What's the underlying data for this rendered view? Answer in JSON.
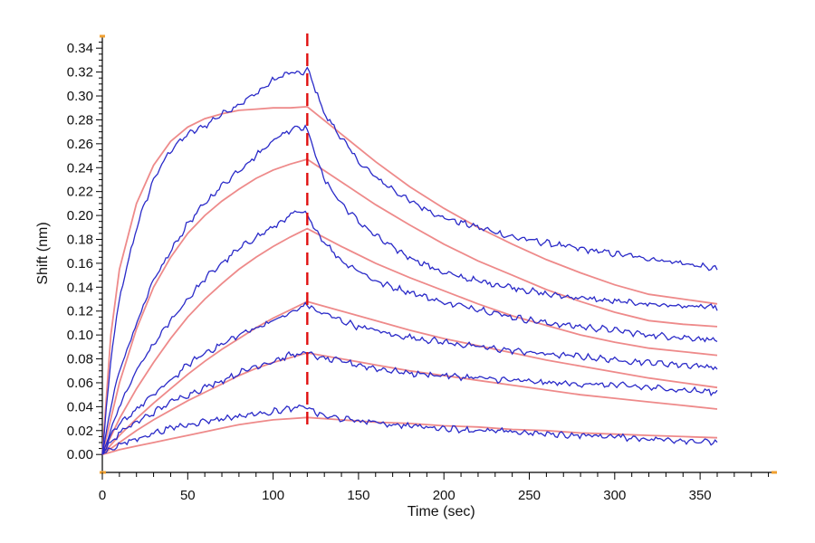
{
  "chart_data": {
    "type": "line",
    "title": "",
    "xlabel": "Time (sec)",
    "ylabel": "Shift (nm)",
    "xlim": [
      0,
      395
    ],
    "ylim": [
      -0.015,
      0.35
    ],
    "x_ticks": [
      0,
      50,
      100,
      150,
      200,
      250,
      300,
      350
    ],
    "x_tick_labels": [
      "0",
      "50",
      "100",
      "150",
      "200",
      "250",
      "300",
      "350"
    ],
    "y_ticks": [
      0.0,
      0.02,
      0.04,
      0.06,
      0.08,
      0.1,
      0.12,
      0.14,
      0.16,
      0.18,
      0.2,
      0.22,
      0.24,
      0.26,
      0.28,
      0.3,
      0.32,
      0.34
    ],
    "y_tick_labels": [
      "0.00",
      "0.02",
      "0.04",
      "0.06",
      "0.08",
      "0.10",
      "0.12",
      "0.14",
      "0.16",
      "0.18",
      "0.20",
      "0.22",
      "0.24",
      "0.26",
      "0.28",
      "0.30",
      "0.32",
      "0.34"
    ],
    "grid": false,
    "legend": "none",
    "association_end_x": 120,
    "x_end": 360,
    "colors": {
      "measured": "#2a2ac8",
      "fit": "#ee8a8a",
      "marker": "#e01010",
      "axis_marker": "#f0a030",
      "axis": "#000000"
    },
    "series": [
      {
        "kind": "measured",
        "x": [
          0,
          5,
          10,
          20,
          30,
          40,
          50,
          60,
          70,
          80,
          90,
          100,
          110,
          115,
          120,
          125,
          130,
          140,
          150,
          160,
          170,
          180,
          200,
          220,
          240,
          260,
          280,
          300,
          320,
          340,
          360
        ],
        "y": [
          0.0,
          0.08,
          0.13,
          0.19,
          0.23,
          0.255,
          0.268,
          0.275,
          0.285,
          0.293,
          0.302,
          0.313,
          0.32,
          0.318,
          0.322,
          0.305,
          0.285,
          0.265,
          0.245,
          0.232,
          0.222,
          0.212,
          0.198,
          0.19,
          0.182,
          0.177,
          0.172,
          0.168,
          0.164,
          0.16,
          0.155
        ]
      },
      {
        "kind": "measured",
        "x": [
          0,
          5,
          10,
          20,
          30,
          40,
          50,
          60,
          70,
          80,
          90,
          100,
          110,
          115,
          120,
          125,
          130,
          140,
          150,
          160,
          170,
          180,
          200,
          220,
          240,
          260,
          280,
          300,
          320,
          340,
          360
        ],
        "y": [
          0.0,
          0.04,
          0.07,
          0.11,
          0.145,
          0.17,
          0.193,
          0.21,
          0.225,
          0.238,
          0.25,
          0.263,
          0.272,
          0.275,
          0.272,
          0.25,
          0.23,
          0.21,
          0.195,
          0.183,
          0.173,
          0.165,
          0.152,
          0.145,
          0.14,
          0.134,
          0.131,
          0.128,
          0.126,
          0.124,
          0.123
        ]
      },
      {
        "kind": "measured",
        "x": [
          0,
          5,
          10,
          20,
          30,
          40,
          50,
          60,
          70,
          80,
          90,
          100,
          110,
          115,
          120,
          125,
          130,
          140,
          150,
          160,
          170,
          180,
          200,
          220,
          240,
          260,
          280,
          300,
          320,
          340,
          360
        ],
        "y": [
          0.0,
          0.02,
          0.04,
          0.07,
          0.092,
          0.112,
          0.13,
          0.147,
          0.16,
          0.172,
          0.182,
          0.19,
          0.2,
          0.203,
          0.2,
          0.188,
          0.178,
          0.162,
          0.154,
          0.145,
          0.14,
          0.136,
          0.127,
          0.122,
          0.115,
          0.11,
          0.107,
          0.104,
          0.1,
          0.098,
          0.096
        ]
      },
      {
        "kind": "measured",
        "x": [
          0,
          5,
          10,
          20,
          30,
          40,
          50,
          60,
          70,
          80,
          90,
          100,
          110,
          115,
          120,
          125,
          130,
          140,
          150,
          160,
          170,
          180,
          200,
          220,
          240,
          260,
          280,
          300,
          320,
          340,
          360
        ],
        "y": [
          0.0,
          0.015,
          0.025,
          0.038,
          0.05,
          0.062,
          0.075,
          0.085,
          0.092,
          0.1,
          0.106,
          0.112,
          0.118,
          0.122,
          0.126,
          0.12,
          0.118,
          0.112,
          0.107,
          0.104,
          0.1,
          0.098,
          0.094,
          0.09,
          0.087,
          0.084,
          0.082,
          0.079,
          0.077,
          0.075,
          0.073
        ]
      },
      {
        "kind": "measured",
        "x": [
          0,
          5,
          10,
          20,
          30,
          40,
          50,
          60,
          70,
          80,
          90,
          100,
          110,
          115,
          120,
          125,
          130,
          140,
          150,
          160,
          170,
          180,
          200,
          220,
          240,
          260,
          280,
          300,
          320,
          340,
          360
        ],
        "y": [
          0.0,
          0.01,
          0.018,
          0.027,
          0.035,
          0.044,
          0.05,
          0.056,
          0.062,
          0.068,
          0.074,
          0.078,
          0.083,
          0.084,
          0.085,
          0.082,
          0.08,
          0.078,
          0.075,
          0.072,
          0.07,
          0.068,
          0.066,
          0.064,
          0.062,
          0.06,
          0.059,
          0.058,
          0.056,
          0.054,
          0.052
        ]
      },
      {
        "kind": "measured",
        "x": [
          0,
          5,
          10,
          20,
          30,
          40,
          50,
          60,
          70,
          80,
          90,
          100,
          110,
          115,
          120,
          125,
          130,
          140,
          150,
          160,
          170,
          180,
          200,
          220,
          240,
          260,
          280,
          300,
          320,
          340,
          360
        ],
        "y": [
          0.0,
          0.005,
          0.008,
          0.013,
          0.018,
          0.022,
          0.025,
          0.028,
          0.03,
          0.032,
          0.034,
          0.036,
          0.038,
          0.039,
          0.04,
          0.035,
          0.032,
          0.03,
          0.028,
          0.027,
          0.025,
          0.024,
          0.022,
          0.02,
          0.019,
          0.017,
          0.016,
          0.015,
          0.013,
          0.012,
          0.01
        ]
      },
      {
        "kind": "fit",
        "x": [
          0,
          5,
          10,
          20,
          30,
          40,
          50,
          60,
          70,
          80,
          90,
          100,
          110,
          120,
          140,
          160,
          180,
          200,
          220,
          240,
          260,
          280,
          300,
          320,
          340,
          360
        ],
        "y": [
          0.0,
          0.1,
          0.155,
          0.21,
          0.242,
          0.262,
          0.274,
          0.281,
          0.285,
          0.288,
          0.289,
          0.29,
          0.29,
          0.291,
          0.268,
          0.245,
          0.224,
          0.206,
          0.19,
          0.176,
          0.163,
          0.152,
          0.142,
          0.134,
          0.13,
          0.126
        ]
      },
      {
        "kind": "fit",
        "x": [
          0,
          5,
          10,
          20,
          30,
          40,
          50,
          60,
          70,
          80,
          90,
          100,
          110,
          120,
          140,
          160,
          180,
          200,
          220,
          240,
          260,
          280,
          300,
          320,
          340,
          360
        ],
        "y": [
          0.0,
          0.03,
          0.06,
          0.105,
          0.14,
          0.165,
          0.185,
          0.2,
          0.212,
          0.222,
          0.231,
          0.238,
          0.243,
          0.247,
          0.228,
          0.209,
          0.192,
          0.176,
          0.162,
          0.15,
          0.138,
          0.128,
          0.119,
          0.112,
          0.109,
          0.107
        ]
      },
      {
        "kind": "fit",
        "x": [
          0,
          5,
          10,
          20,
          30,
          40,
          50,
          60,
          70,
          80,
          90,
          100,
          110,
          120,
          140,
          160,
          180,
          200,
          220,
          240,
          260,
          280,
          300,
          320,
          340,
          360
        ],
        "y": [
          0.0,
          0.015,
          0.03,
          0.055,
          0.077,
          0.097,
          0.115,
          0.13,
          0.143,
          0.155,
          0.165,
          0.174,
          0.182,
          0.189,
          0.174,
          0.16,
          0.148,
          0.137,
          0.126,
          0.116,
          0.108,
          0.1,
          0.094,
          0.089,
          0.086,
          0.083
        ]
      },
      {
        "kind": "fit",
        "x": [
          0,
          5,
          10,
          20,
          30,
          40,
          50,
          60,
          70,
          80,
          90,
          100,
          110,
          120,
          140,
          160,
          180,
          200,
          220,
          240,
          260,
          280,
          300,
          320,
          340,
          360
        ],
        "y": [
          0.0,
          0.008,
          0.016,
          0.03,
          0.043,
          0.055,
          0.067,
          0.078,
          0.088,
          0.097,
          0.106,
          0.114,
          0.121,
          0.128,
          0.12,
          0.112,
          0.104,
          0.097,
          0.091,
          0.085,
          0.079,
          0.074,
          0.069,
          0.064,
          0.06,
          0.056
        ]
      },
      {
        "kind": "fit",
        "x": [
          0,
          5,
          10,
          20,
          30,
          40,
          50,
          60,
          70,
          80,
          90,
          100,
          110,
          120,
          140,
          160,
          180,
          200,
          220,
          240,
          260,
          280,
          300,
          320,
          340,
          360
        ],
        "y": [
          0.0,
          0.005,
          0.01,
          0.02,
          0.029,
          0.037,
          0.045,
          0.052,
          0.059,
          0.066,
          0.072,
          0.077,
          0.081,
          0.085,
          0.08,
          0.075,
          0.07,
          0.066,
          0.062,
          0.058,
          0.054,
          0.05,
          0.047,
          0.044,
          0.041,
          0.038
        ]
      },
      {
        "kind": "fit",
        "x": [
          0,
          5,
          10,
          20,
          30,
          40,
          50,
          60,
          70,
          80,
          90,
          100,
          110,
          120,
          140,
          160,
          180,
          200,
          220,
          240,
          260,
          280,
          300,
          320,
          340,
          360
        ],
        "y": [
          0.0,
          0.002,
          0.004,
          0.007,
          0.01,
          0.013,
          0.016,
          0.019,
          0.022,
          0.025,
          0.027,
          0.029,
          0.03,
          0.031,
          0.029,
          0.027,
          0.026,
          0.024,
          0.023,
          0.021,
          0.02,
          0.018,
          0.017,
          0.016,
          0.015,
          0.014
        ]
      }
    ]
  }
}
